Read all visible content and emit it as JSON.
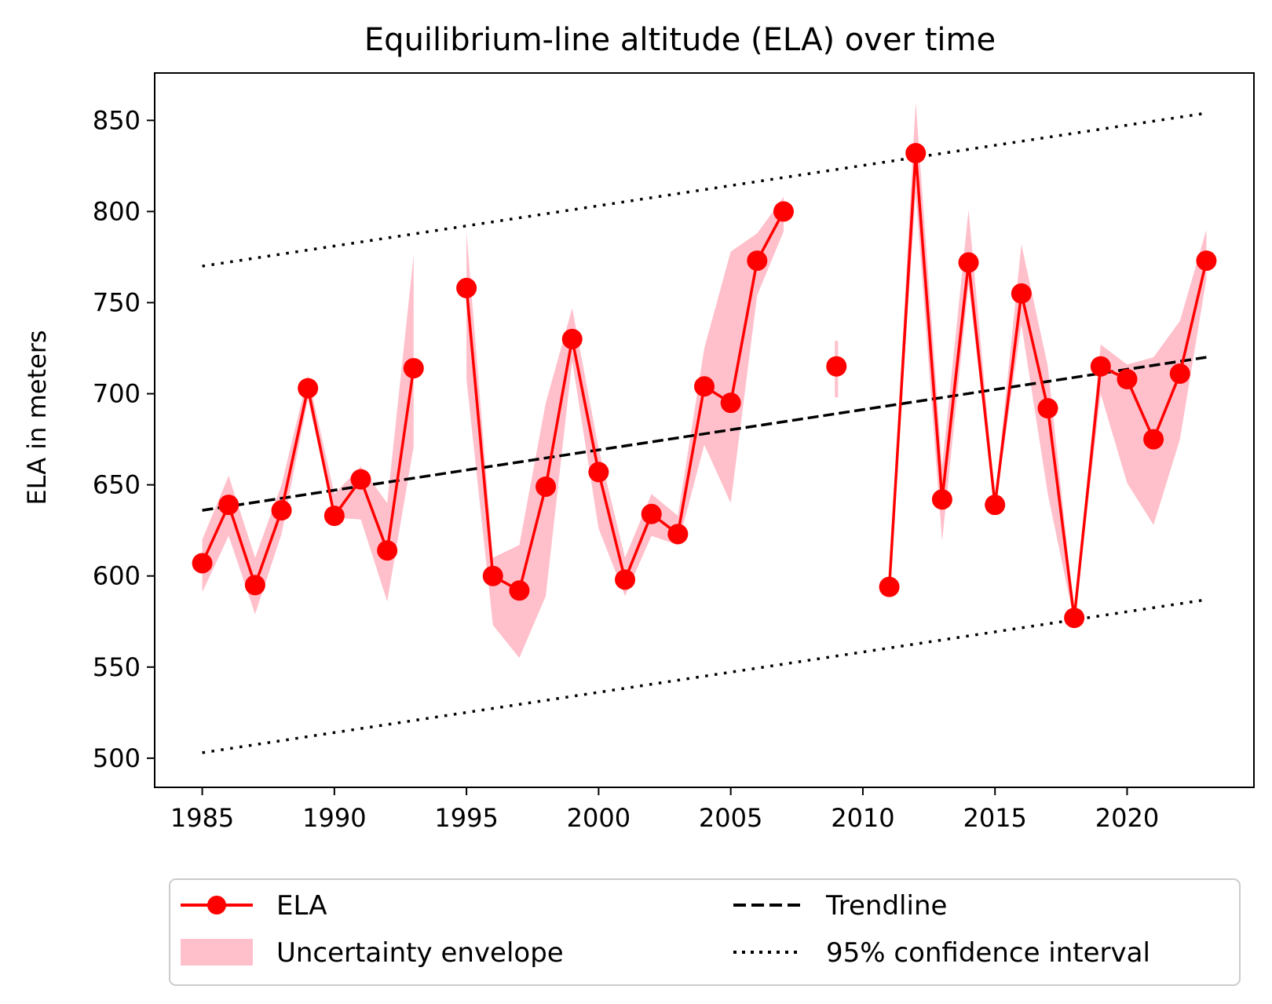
{
  "chart_data": {
    "type": "line",
    "title": "Equilibrium-line altitude (ELA) over time",
    "xlabel": "",
    "ylabel": "ELA in meters",
    "xlim": [
      1983.2,
      2024.8
    ],
    "ylim": [
      484,
      876
    ],
    "xticks": [
      1985,
      1990,
      1995,
      2000,
      2005,
      2010,
      2015,
      2020
    ],
    "yticks": [
      500,
      550,
      600,
      650,
      700,
      750,
      800,
      850
    ],
    "grid": false,
    "legend_position": "bottom, outside plot, two columns",
    "series": [
      {
        "name": "ELA",
        "style": "solid line with circle markers",
        "color": "#ff0000",
        "x": [
          1985,
          1986,
          1987,
          1988,
          1989,
          1990,
          1991,
          1992,
          1993,
          1995,
          1996,
          1997,
          1998,
          1999,
          2000,
          2001,
          2002,
          2003,
          2004,
          2005,
          2006,
          2007,
          2009,
          2011,
          2012,
          2013,
          2014,
          2015,
          2016,
          2017,
          2018,
          2019,
          2020,
          2021,
          2022,
          2023
        ],
        "y": [
          607,
          639,
          595,
          636,
          703,
          633,
          653,
          614,
          714,
          758,
          600,
          592,
          649,
          730,
          657,
          598,
          634,
          623,
          704,
          695,
          773,
          800,
          715,
          594,
          832,
          642,
          772,
          639,
          755,
          692,
          577,
          715,
          708,
          675,
          711,
          773
        ]
      },
      {
        "name": "Uncertainty envelope",
        "style": "filled band",
        "color": "#ffc0cb",
        "x": [
          1985,
          1986,
          1987,
          1988,
          1989,
          1990,
          1991,
          1992,
          1993,
          1995,
          1996,
          1997,
          1998,
          1999,
          2000,
          2001,
          2002,
          2003,
          2004,
          2005,
          2006,
          2007,
          2009,
          2011,
          2012,
          2013,
          2014,
          2015,
          2016,
          2017,
          2018,
          2019,
          2020,
          2021,
          2022,
          2023
        ],
        "upper": [
          620,
          655,
          610,
          650,
          710,
          645,
          660,
          640,
          776,
          789,
          610,
          617,
          695,
          747,
          670,
          610,
          645,
          633,
          725,
          778,
          788,
          808,
          729,
          596,
          860,
          660,
          801,
          642,
          782,
          715,
          580,
          727,
          716,
          720,
          740,
          790
        ],
        "lower": [
          591,
          622,
          579,
          623,
          697,
          632,
          631,
          586,
          671,
          708,
          573,
          555,
          589,
          718,
          626,
          589,
          622,
          617,
          672,
          640,
          754,
          789,
          698,
          593,
          810,
          619,
          760,
          637,
          738,
          645,
          575,
          700,
          651,
          628,
          675,
          763
        ]
      },
      {
        "name": "Trendline",
        "style": "dashed",
        "color": "#000000",
        "x": [
          1985,
          2023
        ],
        "y": [
          636,
          720
        ]
      },
      {
        "name": "95% confidence interval",
        "style": "dotted",
        "color": "#000000",
        "upper": {
          "x": [
            1985,
            2023
          ],
          "y": [
            770,
            854
          ]
        },
        "lower": {
          "x": [
            1985,
            2023
          ],
          "y": [
            503,
            587
          ]
        }
      }
    ]
  },
  "legend": {
    "items": [
      {
        "label": "ELA"
      },
      {
        "label": "Uncertainty envelope"
      },
      {
        "label": "Trendline"
      },
      {
        "label": "95% confidence interval"
      }
    ]
  },
  "colors": {
    "ela": "#ff0000",
    "envelope": "#ffc0cb",
    "trend": "#000000",
    "legend_border": "#cccccc"
  }
}
